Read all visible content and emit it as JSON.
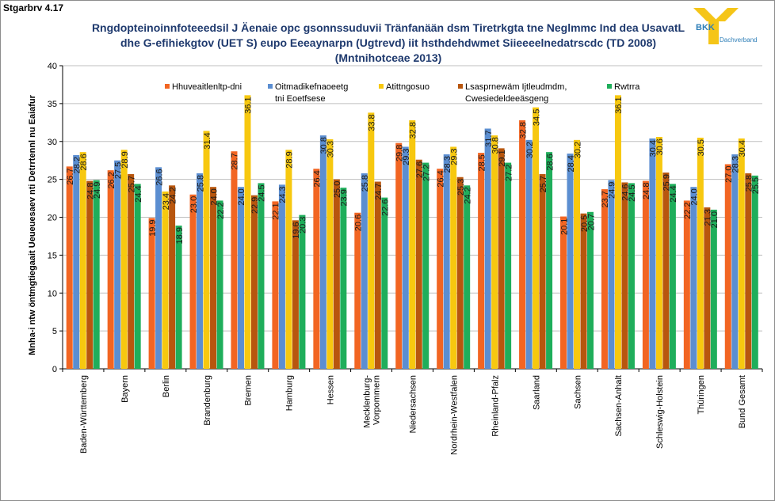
{
  "figure_label": "Stgarbrv 4.17",
  "title": "Rngdopteinoinnfoteeedsil J Äenaie opc gsonnssuduvii Tränfanään dsm Tiretrkgta tne Neglmmc Ind dea UsavatL dhe G-efihiekgtov (UET S) eupo Eeeaynarpn (Ugtrevd) iit hsthdehdwmet Siieeeelnedatrscdc (TD 2008) (Mntnihotceae 2013)",
  "logo": {
    "word": "BKK",
    "sub": "Dachverband",
    "color": "#f5c518"
  },
  "chart_data": {
    "type": "bar",
    "ylabel": "Mnha-i ntw öntmgtiegaait Ueueuesaev nti Detrrtennl nu Eaiafur",
    "xlabel": "",
    "ylim": [
      0,
      40
    ],
    "yticks": [
      0,
      5,
      10,
      15,
      20,
      25,
      30,
      35,
      40
    ],
    "grid": true,
    "legend_position": "top",
    "categories": [
      "Baden-Württemberg",
      "Bayern",
      "Berlin",
      "Brandenburg",
      "Bremen",
      "Hamburg",
      "Hessen",
      "Mecklenburg-Vorpommern",
      "Niedersachsen",
      "Nordrhein-Westfalen",
      "Rheinland-Pfalz",
      "Saarland",
      "Sachsen",
      "Sachsen-Anhalt",
      "Schleswig-Holstein",
      "Thüringen",
      "Bund Gesamt"
    ],
    "series": [
      {
        "name": "Hhuveaitlenltp-dni",
        "color": "#f26522",
        "values": [
          26.7,
          26.2,
          19.9,
          23.0,
          28.7,
          22.1,
          26.4,
          20.6,
          29.8,
          26.4,
          28.5,
          32.8,
          20.1,
          23.7,
          24.8,
          22.2,
          27.0
        ]
      },
      {
        "name": "Oitmadikefnaoeetg tni Eoetfsese",
        "color": "#5b8ed1",
        "values": [
          28.2,
          27.5,
          26.6,
          25.8,
          24.0,
          24.3,
          30.8,
          25.8,
          29.3,
          28.3,
          31.7,
          30.2,
          28.4,
          24.9,
          30.4,
          24.0,
          28.3
        ]
      },
      {
        "name": "Atittngosuo",
        "color": "#f7c80f",
        "values": [
          28.6,
          28.9,
          23.4,
          31.4,
          36.1,
          28.9,
          30.3,
          33.8,
          32.8,
          29.3,
          30.8,
          34.5,
          30.2,
          36.1,
          30.6,
          30.5,
          30.4
        ]
      },
      {
        "name": "Lsasprnewäm Ijtleudmdm, Cwesiedeldeeäsgeng",
        "color": "#b8560e",
        "values": [
          24.8,
          25.7,
          24.2,
          24.0,
          22.9,
          19.6,
          25.0,
          24.7,
          27.6,
          25.3,
          29.1,
          25.7,
          20.5,
          24.6,
          25.9,
          21.3,
          25.8
        ]
      },
      {
        "name": "Rwtrra",
        "color": "#1fae5b",
        "values": [
          24.9,
          24.4,
          18.9,
          22.2,
          24.5,
          20.3,
          23.9,
          22.6,
          27.2,
          24.2,
          27.2,
          28.6,
          20.7,
          24.5,
          24.4,
          21.0,
          25.5
        ]
      }
    ]
  }
}
